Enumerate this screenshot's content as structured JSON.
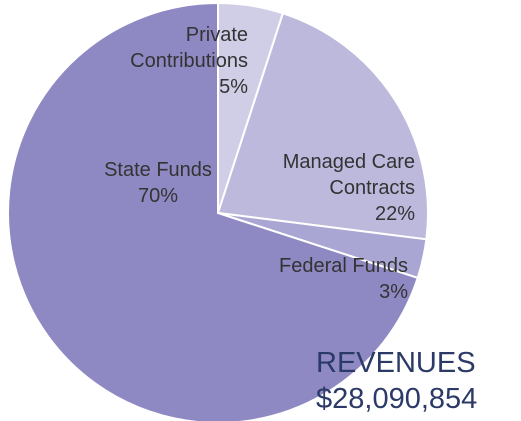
{
  "chart_data": {
    "type": "pie",
    "title": "REVENUES",
    "subtitle": "$28,090,854",
    "categories": [
      "Private Contributions",
      "Managed Care Contracts",
      "Federal Funds",
      "State Funds"
    ],
    "values": [
      5,
      22,
      3,
      70
    ],
    "value_labels": [
      "5%",
      "22%",
      "3%",
      "70%"
    ],
    "colors": [
      "#d0cee7",
      "#bcb9dd",
      "#aaa6d3",
      "#8f89c3"
    ]
  }
}
